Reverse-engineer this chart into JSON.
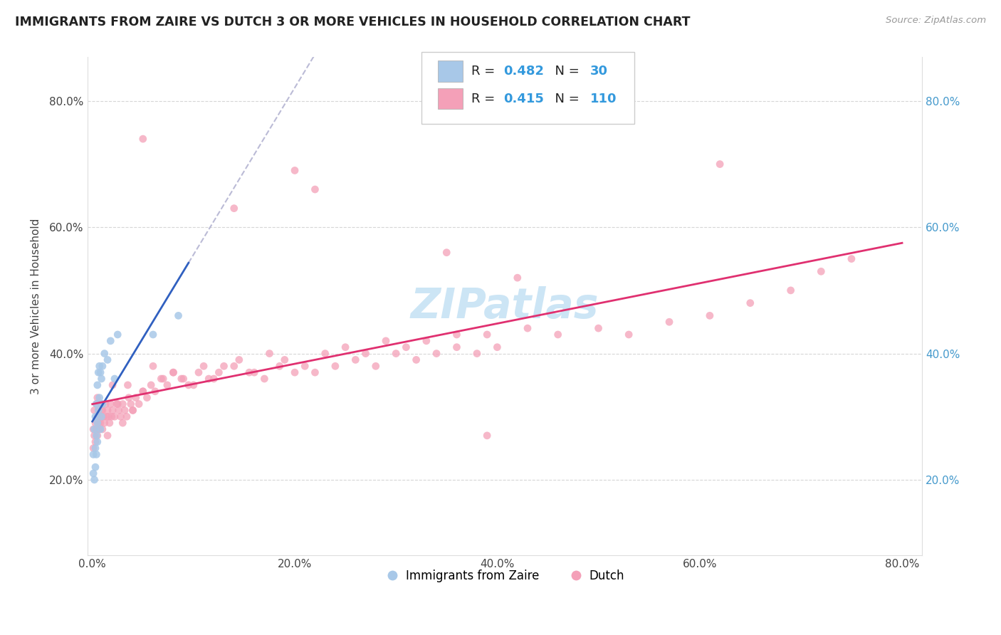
{
  "title": "IMMIGRANTS FROM ZAIRE VS DUTCH 3 OR MORE VEHICLES IN HOUSEHOLD CORRELATION CHART",
  "source_text": "Source: ZipAtlas.com",
  "ylabel": "3 or more Vehicles in Household",
  "xlim": [
    -0.005,
    0.82
  ],
  "ylim": [
    0.08,
    0.87
  ],
  "xtick_labels": [
    "0.0%",
    "20.0%",
    "40.0%",
    "60.0%",
    "80.0%"
  ],
  "xtick_values": [
    0.0,
    0.2,
    0.4,
    0.6,
    0.8
  ],
  "ytick_labels": [
    "20.0%",
    "40.0%",
    "60.0%",
    "80.0%"
  ],
  "ytick_values": [
    0.2,
    0.4,
    0.6,
    0.8
  ],
  "legend_label1": "Immigrants from Zaire",
  "legend_label2": "Dutch",
  "R1": 0.482,
  "N1": 30,
  "R2": 0.415,
  "N2": 110,
  "color1": "#a8c8e8",
  "color2": "#f4a0b8",
  "trendline1_color": "#3060c0",
  "trendline2_color": "#e03070",
  "watermark_color": "#cce5f5",
  "background_color": "#ffffff",
  "grid_color": "#cccccc"
}
